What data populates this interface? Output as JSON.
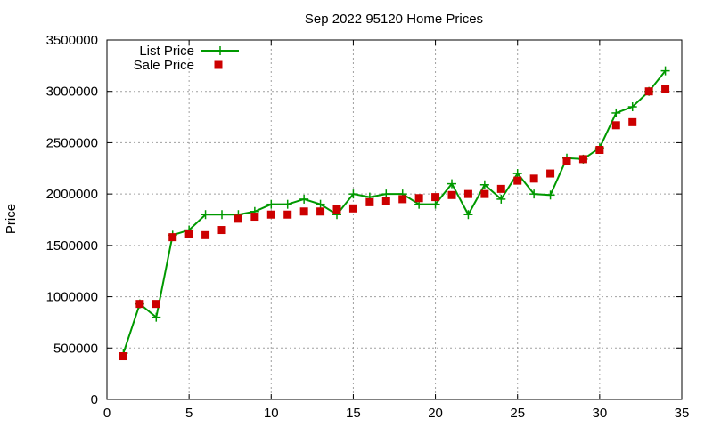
{
  "chart_data": {
    "type": "line",
    "title": "Sep 2022 95120 Home Prices",
    "ylabel": "Price",
    "xlabel": "",
    "xlim": [
      0,
      35
    ],
    "ylim": [
      0,
      3500000
    ],
    "xticks": [
      "0",
      "5",
      "10",
      "15",
      "20",
      "25",
      "30",
      "35"
    ],
    "yticks": [
      "0",
      "500000",
      "1000000",
      "1500000",
      "2000000",
      "2500000",
      "3000000",
      "3500000"
    ],
    "grid": true,
    "legend_position": "top-left",
    "series": [
      {
        "name": "List Price",
        "color": "#009900",
        "style": "line-plus",
        "points": [
          [
            1,
            450000
          ],
          [
            2,
            930000
          ],
          [
            3,
            800000
          ],
          [
            4,
            1600000
          ],
          [
            5,
            1650000
          ],
          [
            6,
            1800000
          ],
          [
            7,
            1800000
          ],
          [
            8,
            1800000
          ],
          [
            9,
            1830000
          ],
          [
            10,
            1900000
          ],
          [
            11,
            1900000
          ],
          [
            12,
            1950000
          ],
          [
            13,
            1900000
          ],
          [
            14,
            1800000
          ],
          [
            15,
            2000000
          ],
          [
            16,
            1970000
          ],
          [
            17,
            2000000
          ],
          [
            18,
            2000000
          ],
          [
            19,
            1900000
          ],
          [
            20,
            1900000
          ],
          [
            21,
            2100000
          ],
          [
            22,
            1800000
          ],
          [
            23,
            2090000
          ],
          [
            24,
            1950000
          ],
          [
            25,
            2200000
          ],
          [
            26,
            2000000
          ],
          [
            27,
            1990000
          ],
          [
            28,
            2350000
          ],
          [
            29,
            2340000
          ],
          [
            30,
            2450000
          ],
          [
            31,
            2790000
          ],
          [
            32,
            2850000
          ],
          [
            33,
            3000000
          ],
          [
            34,
            3200000
          ]
        ]
      },
      {
        "name": "Sale Price",
        "color": "#cc0000",
        "style": "square-markers",
        "points": [
          [
            1,
            420000
          ],
          [
            2,
            930000
          ],
          [
            3,
            930000
          ],
          [
            4,
            1580000
          ],
          [
            5,
            1610000
          ],
          [
            6,
            1600000
          ],
          [
            7,
            1650000
          ],
          [
            8,
            1760000
          ],
          [
            9,
            1780000
          ],
          [
            10,
            1800000
          ],
          [
            11,
            1800000
          ],
          [
            12,
            1830000
          ],
          [
            13,
            1830000
          ],
          [
            14,
            1850000
          ],
          [
            15,
            1860000
          ],
          [
            16,
            1920000
          ],
          [
            17,
            1930000
          ],
          [
            18,
            1950000
          ],
          [
            19,
            1960000
          ],
          [
            20,
            1970000
          ],
          [
            21,
            1990000
          ],
          [
            22,
            2000000
          ],
          [
            23,
            2000000
          ],
          [
            24,
            2050000
          ],
          [
            25,
            2130000
          ],
          [
            26,
            2150000
          ],
          [
            27,
            2200000
          ],
          [
            28,
            2320000
          ],
          [
            29,
            2340000
          ],
          [
            30,
            2430000
          ],
          [
            31,
            2670000
          ],
          [
            32,
            2700000
          ],
          [
            33,
            3000000
          ],
          [
            34,
            3020000
          ]
        ]
      }
    ]
  }
}
